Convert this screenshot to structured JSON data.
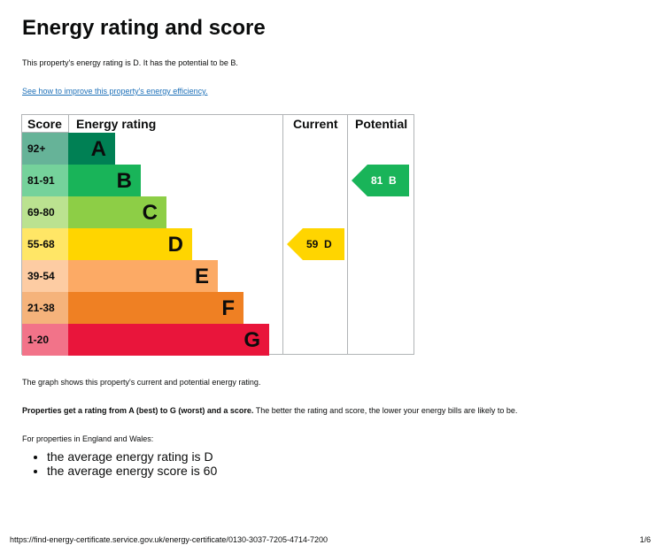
{
  "page": {
    "title": "Energy rating and score",
    "intro": "This property's energy rating is D. It has the potential to be B.",
    "improve_link": "See how to improve this property's energy efficiency.",
    "graph_note": "The graph shows this property's current and potential energy rating.",
    "rating_explain_bold": "Properties get a rating from A (best) to G (worst) and a score.",
    "rating_explain_rest": " The better the rating and score, the lower your energy bills are likely to be.",
    "region_note": "For properties in England and Wales:",
    "averages": [
      "the average energy rating is D",
      "the average energy score is 60"
    ]
  },
  "epc": {
    "headers": {
      "score": "Score",
      "rating": "Energy rating",
      "current": "Current",
      "potential": "Potential"
    },
    "bands": [
      {
        "score": "92+",
        "letter": "A",
        "color": "#008054",
        "score_bg": "#66b398"
      },
      {
        "score": "81-91",
        "letter": "B",
        "color": "#19b459",
        "score_bg": "#75d29b"
      },
      {
        "score": "69-80",
        "letter": "C",
        "color": "#8dce46",
        "score_bg": "#bbe290"
      },
      {
        "score": "55-68",
        "letter": "D",
        "color": "#ffd500",
        "score_bg": "#ffe666"
      },
      {
        "score": "39-54",
        "letter": "E",
        "color": "#fcaa65",
        "score_bg": "#fdcca3"
      },
      {
        "score": "21-38",
        "letter": "F",
        "color": "#ef8023",
        "score_bg": "#f5b37b"
      },
      {
        "score": "1-20",
        "letter": "G",
        "color": "#e9153b",
        "score_bg": "#f27389"
      }
    ],
    "current": {
      "value": "59",
      "letter": "D",
      "band_index": 3,
      "color": "#ffd500"
    },
    "potential": {
      "value": "81",
      "letter": "B",
      "band_index": 1,
      "color": "#19b459"
    }
  },
  "footer": {
    "url": "https://find-energy-certificate.service.gov.uk/energy-certificate/0130-3037-7205-4714-7200",
    "page": "1/6"
  }
}
